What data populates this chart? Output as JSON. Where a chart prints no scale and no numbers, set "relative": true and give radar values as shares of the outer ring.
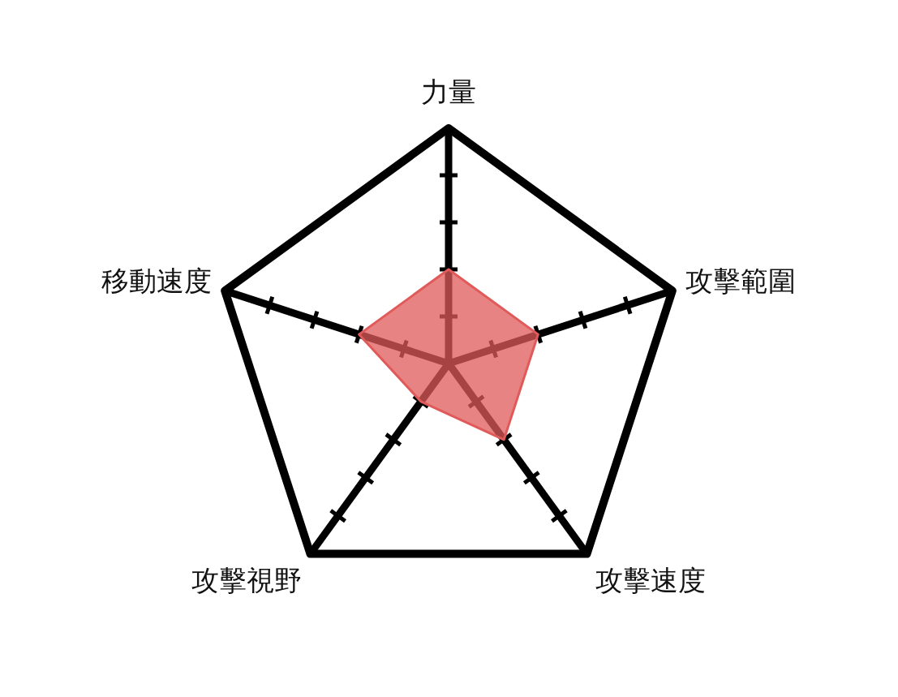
{
  "chart_data": {
    "type": "radar",
    "relative": true,
    "categories": [
      "力量",
      "攻擊範圍",
      "攻擊速度",
      "攻擊視野",
      "移動速度"
    ],
    "series": [
      {
        "color": "#e05a5a",
        "values": [
          0.4,
          0.4,
          0.4,
          0.2,
          0.4
        ]
      }
    ]
  }
}
